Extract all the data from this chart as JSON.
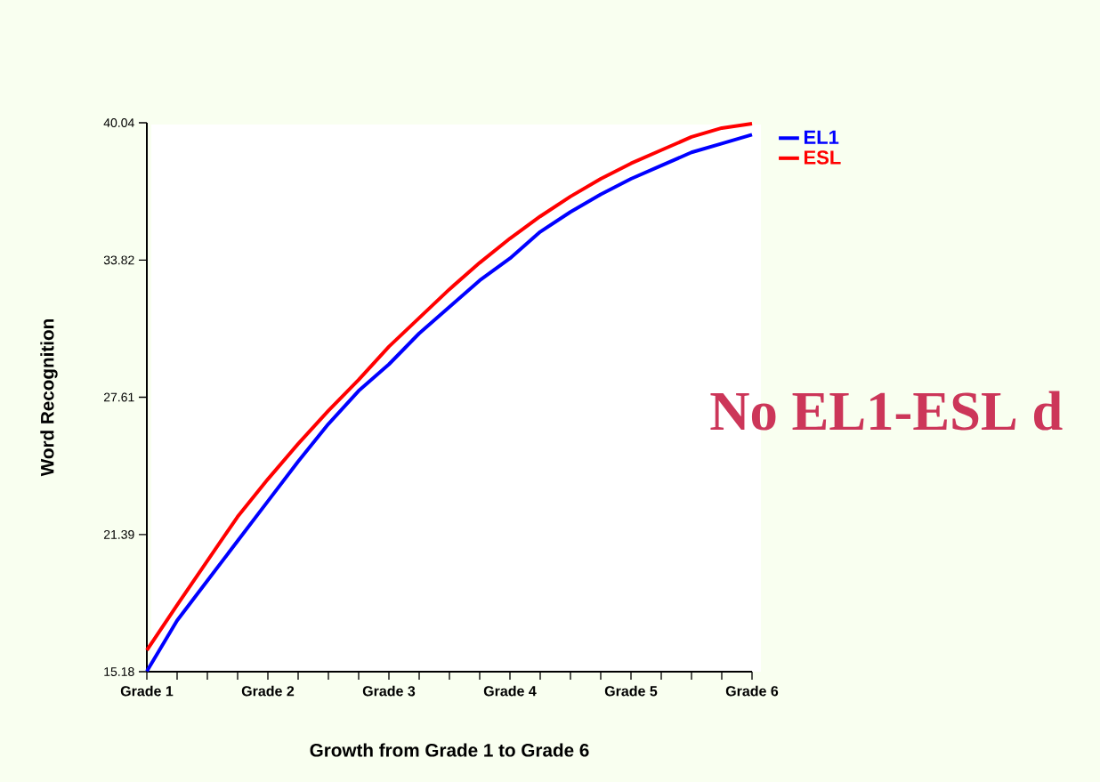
{
  "chart_data": {
    "type": "line",
    "xlabel": "Growth from Grade 1 to Grade 6",
    "ylabel": "Word Recognition",
    "categories": [
      "Grade 1",
      null,
      null,
      null,
      "Grade 2",
      null,
      null,
      null,
      "Grade 3",
      null,
      null,
      null,
      "Grade 4",
      null,
      null,
      null,
      "Grade 5",
      null,
      null,
      null,
      "Grade 6"
    ],
    "ylim": [
      15.18,
      40.04
    ],
    "yticks": [
      15.18,
      21.39,
      27.61,
      33.82,
      40.04
    ],
    "series": [
      {
        "name": "EL1",
        "color": "#0000ff",
        "values": [
          15.2,
          17.5,
          19.3,
          21.1,
          22.9,
          24.7,
          26.4,
          27.9,
          29.1,
          30.5,
          31.7,
          32.9,
          33.9,
          35.1,
          36.0,
          36.8,
          37.5,
          38.1,
          38.7,
          39.1,
          39.5
        ]
      },
      {
        "name": "ESL",
        "color": "#ff0000",
        "values": [
          16.15,
          18.2,
          20.2,
          22.2,
          23.9,
          25.5,
          27.0,
          28.4,
          29.9,
          31.2,
          32.5,
          33.7,
          34.8,
          35.8,
          36.7,
          37.5,
          38.2,
          38.8,
          39.4,
          39.8,
          40.0
        ]
      }
    ],
    "annotations": [
      "No EL1-ESL d"
    ],
    "legend": "top right",
    "grid": false,
    "marker": "none",
    "line_style": "solid"
  }
}
